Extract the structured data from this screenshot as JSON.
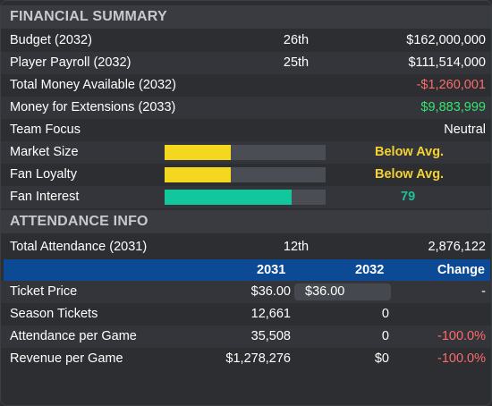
{
  "financial": {
    "title": "FINANCIAL SUMMARY",
    "budget": {
      "label": "Budget (2032)",
      "rank": "26th",
      "value": "$162,000,000"
    },
    "payroll": {
      "label": "Player Payroll (2032)",
      "rank": "25th",
      "value": "$111,514,000"
    },
    "available": {
      "label": "Total Money Available (2032)",
      "value": "-$1,260,001"
    },
    "extensions": {
      "label": "Money for Extensions (2033)",
      "value": "$9,883,999"
    },
    "focus": {
      "label": "Team Focus",
      "value": "Neutral"
    },
    "market": {
      "label": "Market Size",
      "value": "Below Avg.",
      "level": 0.41
    },
    "loyalty": {
      "label": "Fan Loyalty",
      "value": "Below Avg.",
      "level": 0.41
    },
    "interest": {
      "label": "Fan Interest",
      "value": "79",
      "level": 0.79
    }
  },
  "attendance": {
    "title": "ATTENDANCE INFO",
    "total": {
      "label": "Total Attendance (2031)",
      "rank": "12th",
      "value": "2,876,122"
    },
    "columns": {
      "y1": "2031",
      "y2": "2032",
      "change": "Change"
    },
    "ticket": {
      "label": "Ticket Price",
      "v1": "$36.00",
      "v2": "$36.00",
      "change": "-"
    },
    "season": {
      "label": "Season Tickets",
      "v1": "12,661",
      "v2": "0",
      "change": ""
    },
    "per_game": {
      "label": "Attendance per Game",
      "v1": "35,508",
      "v2": "0",
      "change": "-100.0%"
    },
    "revenue": {
      "label": "Revenue per Game",
      "v1": "$1,278,276",
      "v2": "$0",
      "change": "-100.0%"
    }
  },
  "colors": {
    "header_bg": "#393b40",
    "table_head_bg": "#0d4a96",
    "negative": "#ff6b6b",
    "positive": "#39e36e",
    "bar_yellow": "#f4d71f",
    "bar_teal": "#12c79b"
  }
}
